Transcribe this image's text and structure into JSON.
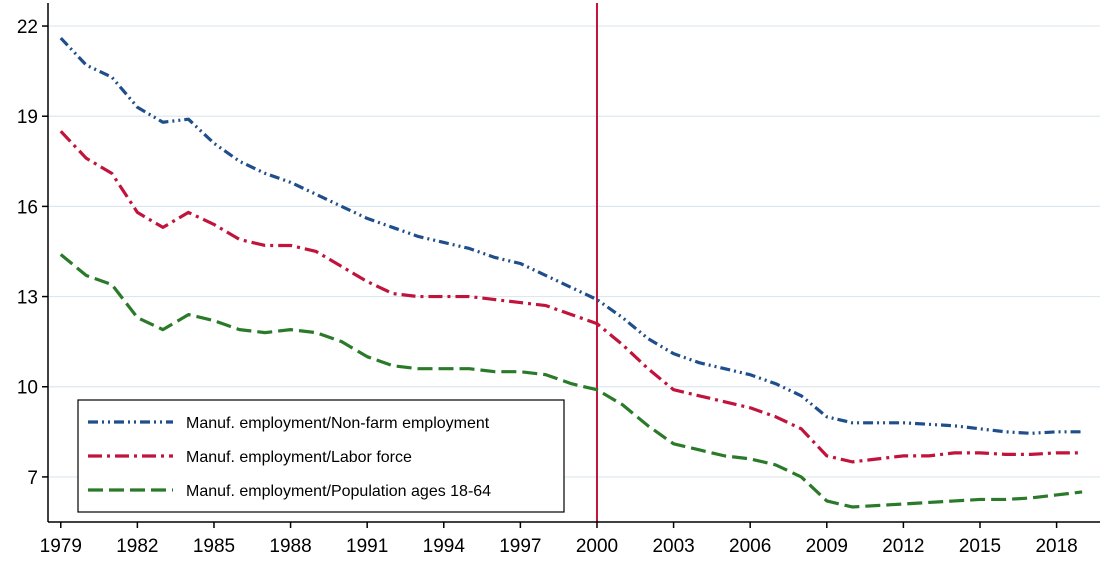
{
  "chart_data": {
    "type": "line",
    "title": "",
    "xlabel": "",
    "ylabel": "",
    "xlim": [
      1978.5,
      2019.7
    ],
    "ylim": [
      5.5,
      22.7
    ],
    "x_ticks": [
      1979,
      1982,
      1985,
      1988,
      1991,
      1994,
      1997,
      2000,
      2003,
      2006,
      2009,
      2012,
      2015,
      2018
    ],
    "y_ticks": [
      7,
      10,
      13,
      16,
      19,
      22
    ],
    "grid": "horizontal",
    "legend_position": "bottom-left",
    "reference_line": {
      "x": 2000,
      "color": "#c0143c"
    },
    "x": [
      1979,
      1980,
      1981,
      1982,
      1983,
      1984,
      1985,
      1986,
      1987,
      1988,
      1989,
      1990,
      1991,
      1992,
      1993,
      1994,
      1995,
      1996,
      1997,
      1998,
      1999,
      2000,
      2001,
      2002,
      2003,
      2004,
      2005,
      2006,
      2007,
      2008,
      2009,
      2010,
      2011,
      2012,
      2013,
      2014,
      2015,
      2016,
      2017,
      2018,
      2019
    ],
    "series": [
      {
        "name": "Manuf. employment/Non-farm employment",
        "color": "#1f4e8c",
        "dash": "dash-dot-dot",
        "values": [
          21.6,
          20.7,
          20.3,
          19.3,
          18.8,
          18.9,
          18.1,
          17.5,
          17.1,
          16.8,
          16.4,
          16.0,
          15.6,
          15.3,
          15.0,
          14.8,
          14.6,
          14.3,
          14.1,
          13.7,
          13.3,
          12.9,
          12.3,
          11.6,
          11.1,
          10.8,
          10.6,
          10.4,
          10.1,
          9.7,
          9.0,
          8.8,
          8.8,
          8.8,
          8.75,
          8.7,
          8.6,
          8.5,
          8.45,
          8.5,
          8.5
        ]
      },
      {
        "name": "Manuf. employment/Labor force",
        "color": "#c0143c",
        "dash": "dash-dot",
        "values": [
          18.5,
          17.6,
          17.1,
          15.8,
          15.3,
          15.8,
          15.4,
          14.9,
          14.7,
          14.7,
          14.5,
          14.0,
          13.5,
          13.1,
          13.0,
          13.0,
          13.0,
          12.9,
          12.8,
          12.7,
          12.4,
          12.1,
          11.4,
          10.6,
          9.9,
          9.7,
          9.5,
          9.3,
          9.0,
          8.6,
          7.7,
          7.5,
          7.6,
          7.7,
          7.7,
          7.8,
          7.8,
          7.75,
          7.75,
          7.8,
          7.8
        ]
      },
      {
        "name": "Manuf. employment/Population ages 18-64",
        "color": "#2a7a2a",
        "dash": "long-dash",
        "values": [
          14.4,
          13.7,
          13.4,
          12.3,
          11.9,
          12.4,
          12.2,
          11.9,
          11.8,
          11.9,
          11.8,
          11.5,
          11.0,
          10.7,
          10.6,
          10.6,
          10.6,
          10.5,
          10.5,
          10.4,
          10.1,
          9.9,
          9.4,
          8.7,
          8.1,
          7.9,
          7.7,
          7.6,
          7.4,
          7.0,
          6.2,
          6.0,
          6.05,
          6.1,
          6.15,
          6.2,
          6.25,
          6.25,
          6.3,
          6.4,
          6.5
        ]
      }
    ]
  }
}
